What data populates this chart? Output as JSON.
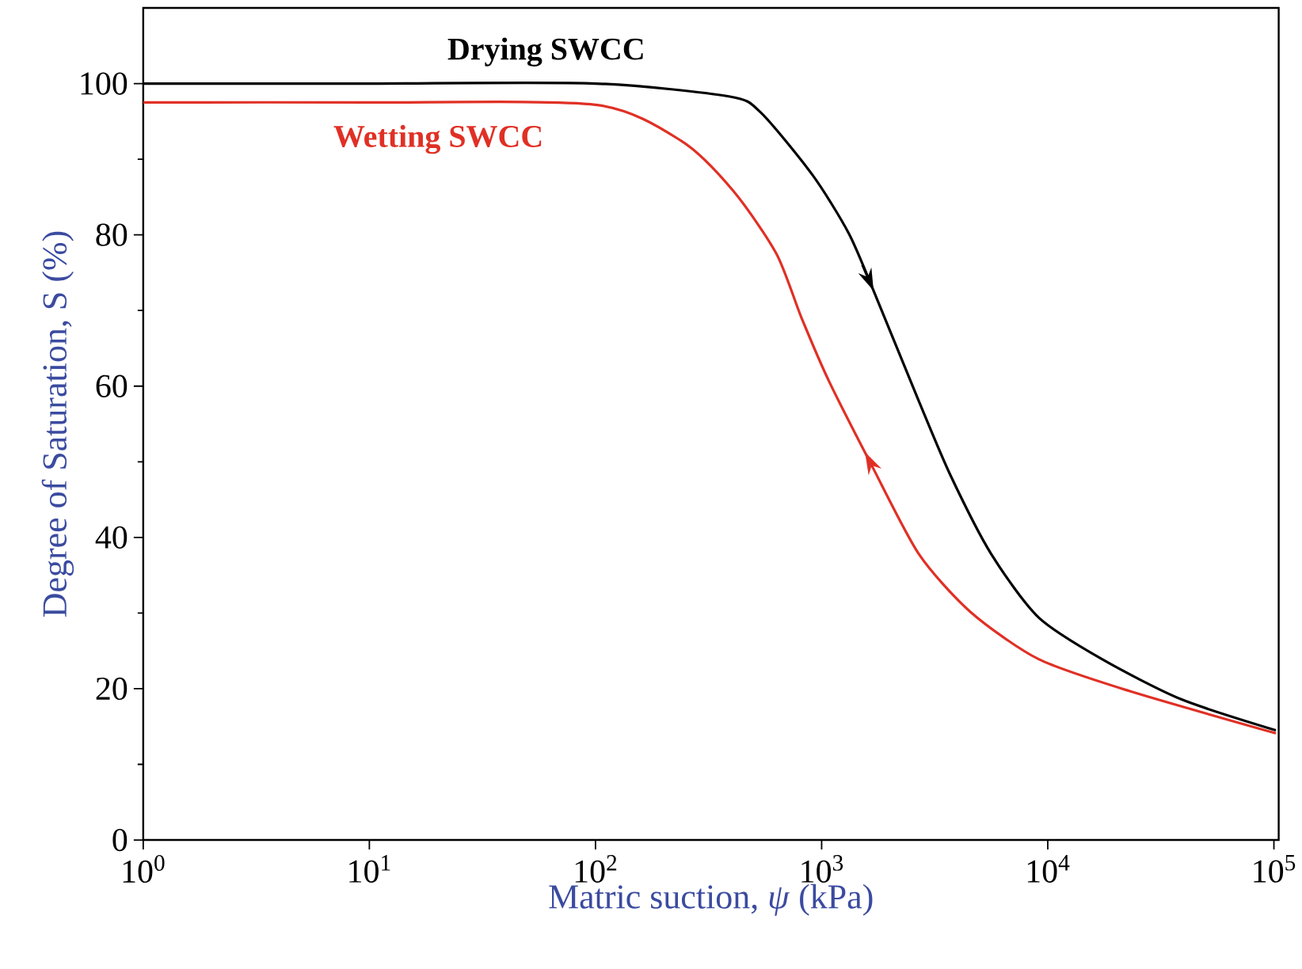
{
  "chart_data": {
    "type": "line",
    "xlabel": "Matric suction, *ψ* (kPa)",
    "ylabel": "Degree of Saturation, S (%)",
    "log": "x",
    "legend": false,
    "grid": false,
    "marker": "none",
    "line_style": "solid",
    "xlim": [
      1,
      105000
    ],
    "ylim": [
      0,
      110
    ],
    "xticks": [
      {
        "value": 1,
        "label": "10$^{0}$"
      },
      {
        "value": 10,
        "label": "10$^{1}$"
      },
      {
        "value": 100,
        "label": "10$^{2}$"
      },
      {
        "value": 1000,
        "label": "10$^{3}$"
      },
      {
        "value": 10000,
        "label": "10$^{4}$"
      },
      {
        "value": 100000,
        "label": "10$^{5}$"
      }
    ],
    "yticks": [
      0,
      20,
      40,
      60,
      80,
      100
    ],
    "series": [
      {
        "name": "Drying SWCC",
        "color": "#000000",
        "x": [
          1,
          10,
          100,
          389,
          537,
          912,
          1318,
          1698,
          2692,
          3715,
          5623,
          9120,
          17378,
          38905,
          102000
        ],
        "values": [
          100,
          100,
          100,
          98.3,
          96.2,
          87.9,
          80.2,
          72.6,
          58,
          48.2,
          37.8,
          29.4,
          23.9,
          18.6,
          14.5
        ]
      },
      {
        "name": "Wetting SWCC",
        "color": "#e03025",
        "x": [
          1,
          10,
          100,
          240,
          407,
          631,
          813,
          1072,
          1660,
          2692,
          4571,
          9120,
          22909,
          102000
        ],
        "values": [
          97.5,
          97.5,
          97.2,
          92.4,
          85.8,
          77.5,
          69.1,
          60.8,
          49.6,
          37.8,
          30.1,
          23.9,
          19.7,
          14.1
        ]
      }
    ]
  }
}
